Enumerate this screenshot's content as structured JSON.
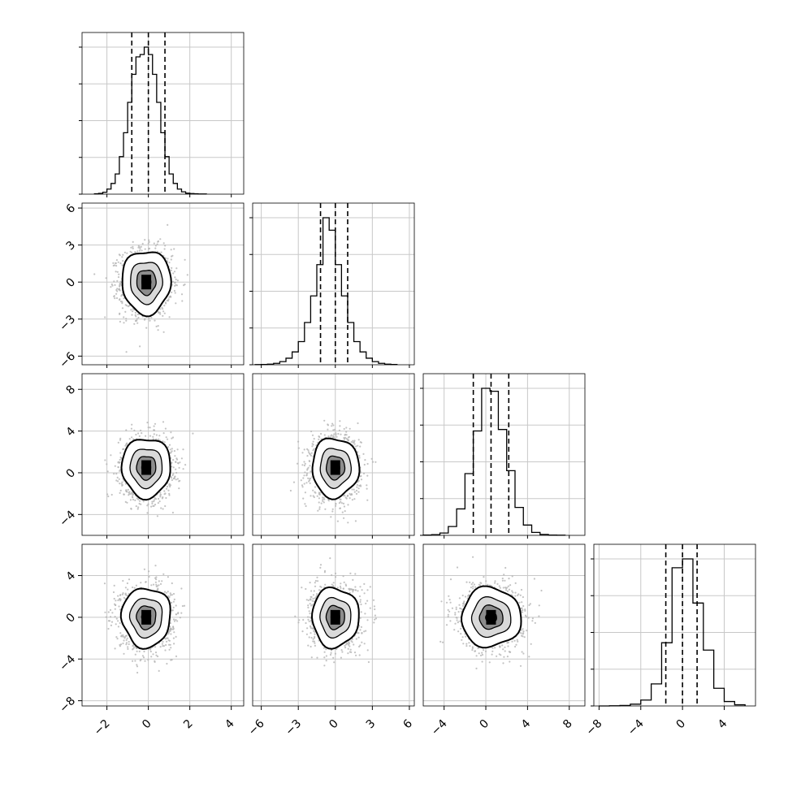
{
  "chart_data": {
    "type": "corner",
    "grid": true,
    "parameters": [
      {
        "index": 0,
        "range": [
          -3.2,
          4.6
        ],
        "ticks": [
          "-2",
          "0",
          "2",
          "4"
        ],
        "ticks_y": [],
        "quantiles": [
          -0.8,
          0.0,
          0.8
        ]
      },
      {
        "index": 1,
        "range": [
          -6.7,
          6.4
        ],
        "ticks": [
          "-6",
          "-3",
          "0",
          "3",
          "6"
        ],
        "quantiles": [
          -1.2,
          0.0,
          1.0
        ]
      },
      {
        "index": 2,
        "range": [
          -6.0,
          9.5
        ],
        "ticks": [
          "-4",
          "0",
          "4",
          "8"
        ],
        "quantiles": [
          -1.2,
          0.5,
          2.2
        ]
      },
      {
        "index": 3,
        "range": [
          -8.5,
          7.0
        ],
        "ticks": [
          "-8",
          "-4",
          "0",
          "4"
        ],
        "quantiles": [
          -1.6,
          0.0,
          1.4
        ]
      }
    ],
    "histograms": [
      {
        "param": 0,
        "edges": [
          -2.6,
          -2.4,
          -2.2,
          -2.0,
          -1.8,
          -1.6,
          -1.4,
          -1.2,
          -1.0,
          -0.8,
          -0.6,
          -0.4,
          -0.2,
          0.0,
          0.2,
          0.4,
          0.6,
          0.8,
          1.0,
          1.2,
          1.4,
          1.6,
          1.8,
          2.0,
          2.2,
          2.4,
          2.6,
          2.8
        ],
        "counts": [
          2,
          4,
          10,
          26,
          55,
          104,
          193,
          316,
          472,
          616,
          706,
          718,
          756,
          718,
          616,
          472,
          316,
          193,
          104,
          55,
          26,
          12,
          5,
          3,
          2,
          1,
          1
        ]
      },
      {
        "param": 1,
        "edges": [
          -6.5,
          -6.0,
          -5.5,
          -5.0,
          -4.5,
          -4.0,
          -3.5,
          -3.0,
          -2.5,
          -2.0,
          -1.5,
          -1.0,
          -0.5,
          0.0,
          0.5,
          1.0,
          1.5,
          2.0,
          2.5,
          3.0,
          3.5,
          4.0,
          4.5,
          5.0
        ],
        "counts": [
          1,
          2,
          4,
          9,
          20,
          42,
          82,
          148,
          270,
          440,
          640,
          940,
          860,
          640,
          440,
          270,
          148,
          82,
          42,
          20,
          9,
          4,
          2
        ]
      },
      {
        "param": 2,
        "edges": [
          -6.0,
          -5.2,
          -4.4,
          -3.6,
          -2.8,
          -2.0,
          -1.2,
          -0.4,
          0.4,
          1.2,
          2.0,
          2.8,
          3.6,
          4.4,
          5.2,
          6.0,
          6.8,
          7.6
        ],
        "counts": [
          2,
          5,
          16,
          60,
          180,
          420,
          710,
          1000,
          980,
          720,
          440,
          190,
          70,
          20,
          6,
          2,
          1
        ]
      },
      {
        "param": 3,
        "edges": [
          -8.0,
          -7.0,
          -6.0,
          -5.0,
          -4.0,
          -3.0,
          -2.0,
          -1.0,
          0.0,
          1.0,
          2.0,
          3.0,
          4.0,
          5.0,
          6.0
        ],
        "counts": [
          0,
          1,
          3,
          12,
          40,
          150,
          430,
          940,
          1000,
          700,
          380,
          120,
          30,
          8
        ]
      }
    ],
    "pairs": [
      {
        "x": 0,
        "y": 1,
        "center": [
          -0.1,
          0.0
        ],
        "sd": [
          0.62,
          1.35
        ],
        "contours": [
          0.35,
          0.75,
          1.25,
          1.9
        ]
      },
      {
        "x": 0,
        "y": 2,
        "center": [
          -0.1,
          0.5
        ],
        "sd": [
          0.62,
          1.5
        ],
        "contours": [
          0.35,
          0.75,
          1.25,
          1.9
        ]
      },
      {
        "x": 1,
        "y": 2,
        "center": [
          0.0,
          0.5
        ],
        "sd": [
          1.0,
          1.5
        ],
        "contours": [
          0.35,
          0.75,
          1.25,
          1.9
        ]
      },
      {
        "x": 0,
        "y": 3,
        "center": [
          -0.1,
          0.0
        ],
        "sd": [
          0.62,
          1.5
        ],
        "contours": [
          0.35,
          0.75,
          1.25,
          1.9
        ]
      },
      {
        "x": 1,
        "y": 3,
        "center": [
          0.0,
          0.0
        ],
        "sd": [
          1.0,
          1.5
        ],
        "contours": [
          0.35,
          0.75,
          1.25,
          1.9
        ]
      },
      {
        "x": 2,
        "y": 3,
        "center": [
          0.5,
          0.0
        ],
        "sd": [
          1.5,
          1.5
        ],
        "contours": [
          0.35,
          0.75,
          1.25,
          1.9
        ]
      }
    ]
  }
}
